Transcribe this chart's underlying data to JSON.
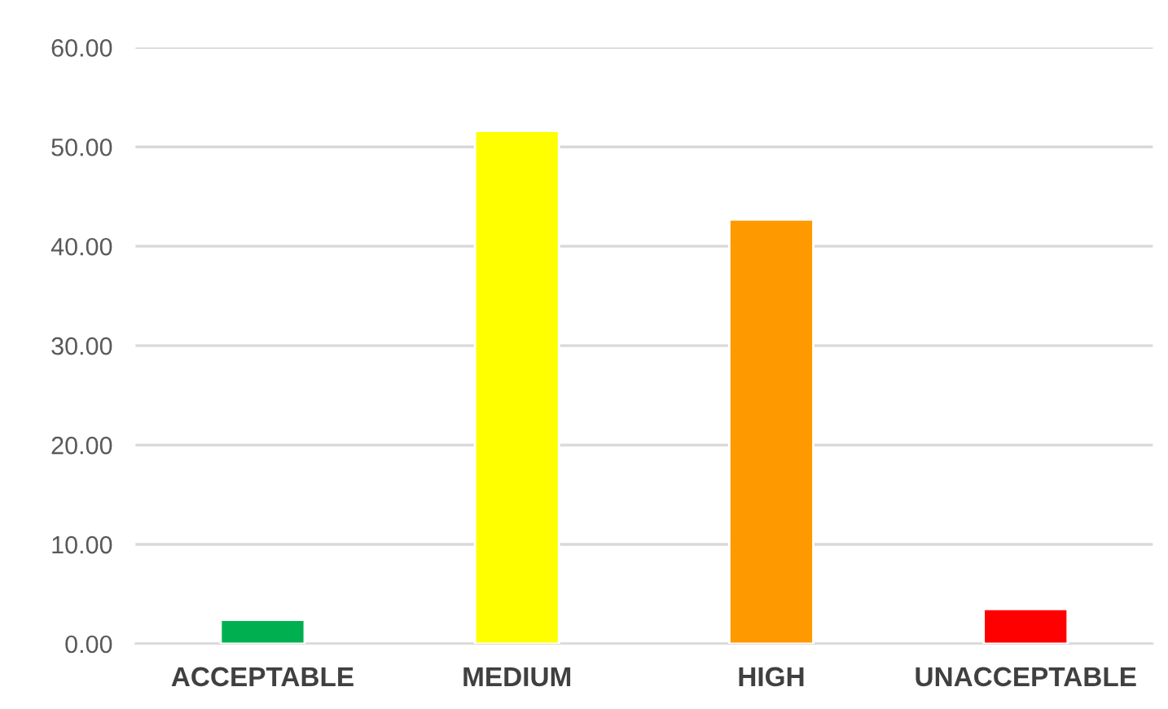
{
  "chart_data": {
    "type": "bar",
    "categories": [
      "ACCEPTABLE",
      "MEDIUM",
      "HIGH",
      "UNACCEPTABLE"
    ],
    "values": [
      2.4,
      51.6,
      42.7,
      3.5
    ],
    "colors": [
      "#00b050",
      "#ffff00",
      "#ff9900",
      "#ff0000"
    ],
    "ylim": [
      0,
      60
    ],
    "yticks": [
      {
        "value": 0,
        "label": "0.00"
      },
      {
        "value": 10,
        "label": "10.00"
      },
      {
        "value": 20,
        "label": "20.00"
      },
      {
        "value": 30,
        "label": "30.00"
      },
      {
        "value": 40,
        "label": "40.00"
      },
      {
        "value": 50,
        "label": "50.00"
      },
      {
        "value": 60,
        "label": "60.00"
      }
    ],
    "grid": "y"
  }
}
